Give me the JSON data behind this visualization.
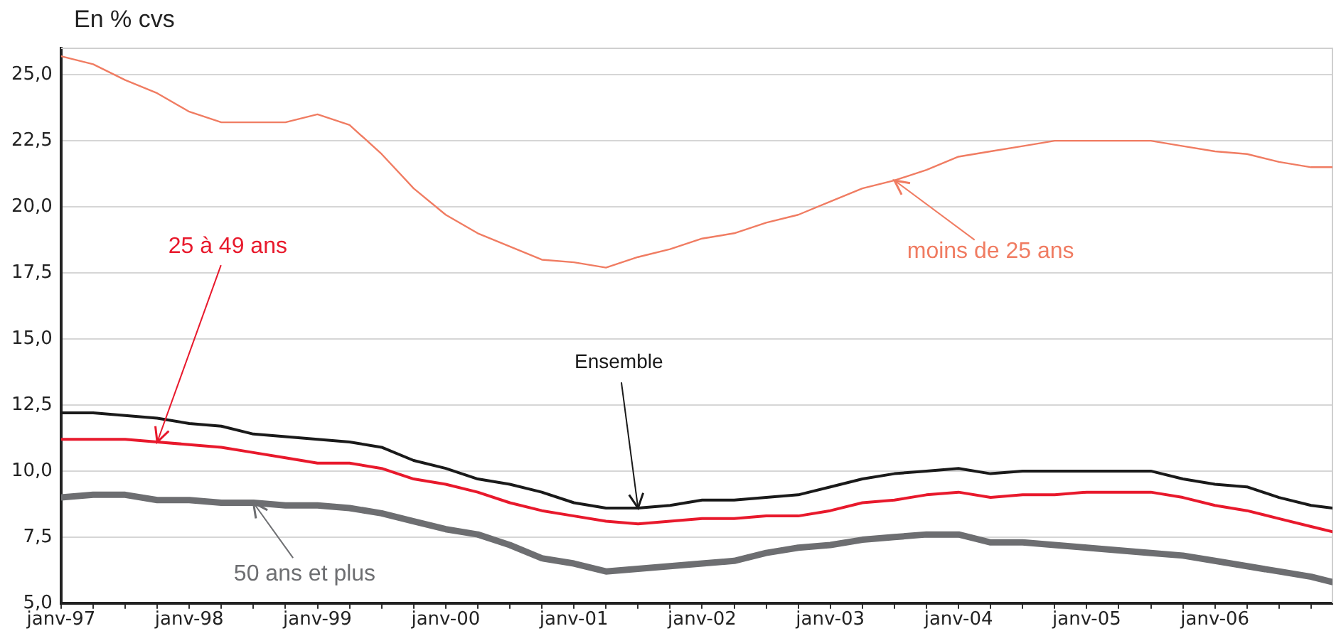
{
  "chart_data": {
    "type": "line",
    "ylabel": "En % cvs",
    "x": [
      "1997-01",
      "1997-04",
      "1997-07",
      "1997-10",
      "1998-01",
      "1998-04",
      "1998-07",
      "1998-10",
      "1999-01",
      "1999-04",
      "1999-07",
      "1999-10",
      "2000-01",
      "2000-04",
      "2000-07",
      "2000-10",
      "2001-01",
      "2001-04",
      "2001-07",
      "2001-10",
      "2002-01",
      "2002-04",
      "2002-07",
      "2002-10",
      "2003-01",
      "2003-04",
      "2003-07",
      "2003-10",
      "2004-01",
      "2004-04",
      "2004-07",
      "2004-10",
      "2005-01",
      "2005-04",
      "2005-07",
      "2005-10",
      "2006-01",
      "2006-04",
      "2006-07",
      "2006-10",
      "2006-12"
    ],
    "series": [
      {
        "name": "moins de 25 ans",
        "color": "#f07c62",
        "values": [
          25.7,
          25.4,
          24.8,
          24.3,
          23.6,
          23.2,
          23.2,
          23.2,
          23.5,
          23.1,
          22.0,
          20.7,
          19.7,
          19.0,
          18.5,
          18.0,
          17.9,
          17.7,
          18.1,
          18.4,
          18.8,
          19.0,
          19.4,
          19.7,
          20.2,
          20.7,
          21.0,
          21.4,
          21.9,
          22.1,
          22.3,
          22.5,
          22.5,
          22.5,
          22.5,
          22.3,
          22.1,
          22.0,
          21.7,
          21.5,
          21.5
        ]
      },
      {
        "name": "25 à 49 ans",
        "color": "#e8192c",
        "values": [
          11.2,
          11.2,
          11.2,
          11.1,
          11.0,
          10.9,
          10.7,
          10.5,
          10.3,
          10.3,
          10.1,
          9.7,
          9.5,
          9.2,
          8.8,
          8.5,
          8.3,
          8.1,
          8.0,
          8.1,
          8.2,
          8.2,
          8.3,
          8.3,
          8.5,
          8.8,
          8.9,
          9.1,
          9.2,
          9.0,
          9.1,
          9.1,
          9.2,
          9.2,
          9.2,
          9.0,
          8.7,
          8.5,
          8.2,
          7.9,
          7.7
        ]
      },
      {
        "name": "Ensemble",
        "color": "#1a1a1a",
        "values": [
          12.2,
          12.2,
          12.1,
          12.0,
          11.8,
          11.7,
          11.4,
          11.3,
          11.2,
          11.1,
          10.9,
          10.4,
          10.1,
          9.7,
          9.5,
          9.2,
          8.8,
          8.6,
          8.6,
          8.7,
          8.9,
          8.9,
          9.0,
          9.1,
          9.4,
          9.7,
          9.9,
          10.0,
          10.1,
          9.9,
          10.0,
          10.0,
          10.0,
          10.0,
          10.0,
          9.7,
          9.5,
          9.4,
          9.0,
          8.7,
          8.6
        ]
      },
      {
        "name": "50 ans et plus",
        "color": "#6d6e71",
        "values": [
          9.0,
          9.1,
          9.1,
          8.9,
          8.9,
          8.8,
          8.8,
          8.7,
          8.7,
          8.6,
          8.4,
          8.1,
          7.8,
          7.6,
          7.2,
          6.7,
          6.5,
          6.2,
          6.3,
          6.4,
          6.5,
          6.6,
          6.9,
          7.1,
          7.2,
          7.4,
          7.5,
          7.6,
          7.6,
          7.3,
          7.3,
          7.2,
          7.1,
          7.0,
          6.9,
          6.8,
          6.6,
          6.4,
          6.2,
          6.0,
          5.8
        ]
      }
    ],
    "xlim": [
      "1997-01",
      "2006-12"
    ],
    "xticks": [
      {
        "value": "1997-01",
        "label": "janv-97"
      },
      {
        "value": "1997-04",
        "label": null
      },
      {
        "value": "1997-07",
        "label": null
      },
      {
        "value": "1997-10",
        "label": null
      },
      {
        "value": "1998-01",
        "label": "janv-98"
      },
      {
        "value": "1998-04",
        "label": null
      },
      {
        "value": "1998-07",
        "label": null
      },
      {
        "value": "1998-10",
        "label": null
      },
      {
        "value": "1999-01",
        "label": "janv-99"
      },
      {
        "value": "1999-04",
        "label": null
      },
      {
        "value": "1999-07",
        "label": null
      },
      {
        "value": "1999-10",
        "label": null
      },
      {
        "value": "2000-01",
        "label": "janv-00"
      },
      {
        "value": "2000-04",
        "label": null
      },
      {
        "value": "2000-07",
        "label": null
      },
      {
        "value": "2000-10",
        "label": null
      },
      {
        "value": "2001-01",
        "label": "janv-01"
      },
      {
        "value": "2001-04",
        "label": null
      },
      {
        "value": "2001-07",
        "label": null
      },
      {
        "value": "2001-10",
        "label": null
      },
      {
        "value": "2002-01",
        "label": "janv-02"
      },
      {
        "value": "2002-04",
        "label": null
      },
      {
        "value": "2002-07",
        "label": null
      },
      {
        "value": "2002-10",
        "label": null
      },
      {
        "value": "2003-01",
        "label": "janv-03"
      },
      {
        "value": "2003-04",
        "label": null
      },
      {
        "value": "2003-07",
        "label": null
      },
      {
        "value": "2003-10",
        "label": null
      },
      {
        "value": "2004-01",
        "label": "janv-04"
      },
      {
        "value": "2004-04",
        "label": null
      },
      {
        "value": "2004-07",
        "label": null
      },
      {
        "value": "2004-10",
        "label": null
      },
      {
        "value": "2005-01",
        "label": "janv-05"
      },
      {
        "value": "2005-04",
        "label": null
      },
      {
        "value": "2005-07",
        "label": null
      },
      {
        "value": "2005-10",
        "label": null
      },
      {
        "value": "2006-01",
        "label": "janv-06"
      },
      {
        "value": "2006-04",
        "label": null
      },
      {
        "value": "2006-07",
        "label": null
      },
      {
        "value": "2006-10",
        "label": null
      }
    ],
    "ylim": [
      5,
      26
    ],
    "yticks": [
      {
        "value": 5,
        "label": "5,0"
      },
      {
        "value": 7.5,
        "label": "7,5"
      },
      {
        "value": 10,
        "label": "10,0"
      },
      {
        "value": 12.5,
        "label": "12,5"
      },
      {
        "value": 15,
        "label": "15,0"
      },
      {
        "value": 17.5,
        "label": "17,5"
      },
      {
        "value": 20,
        "label": "20,0"
      },
      {
        "value": 22.5,
        "label": "22,5"
      },
      {
        "value": 25,
        "label": "25,0"
      }
    ],
    "grid": "y",
    "legend": false,
    "marker": "none"
  }
}
